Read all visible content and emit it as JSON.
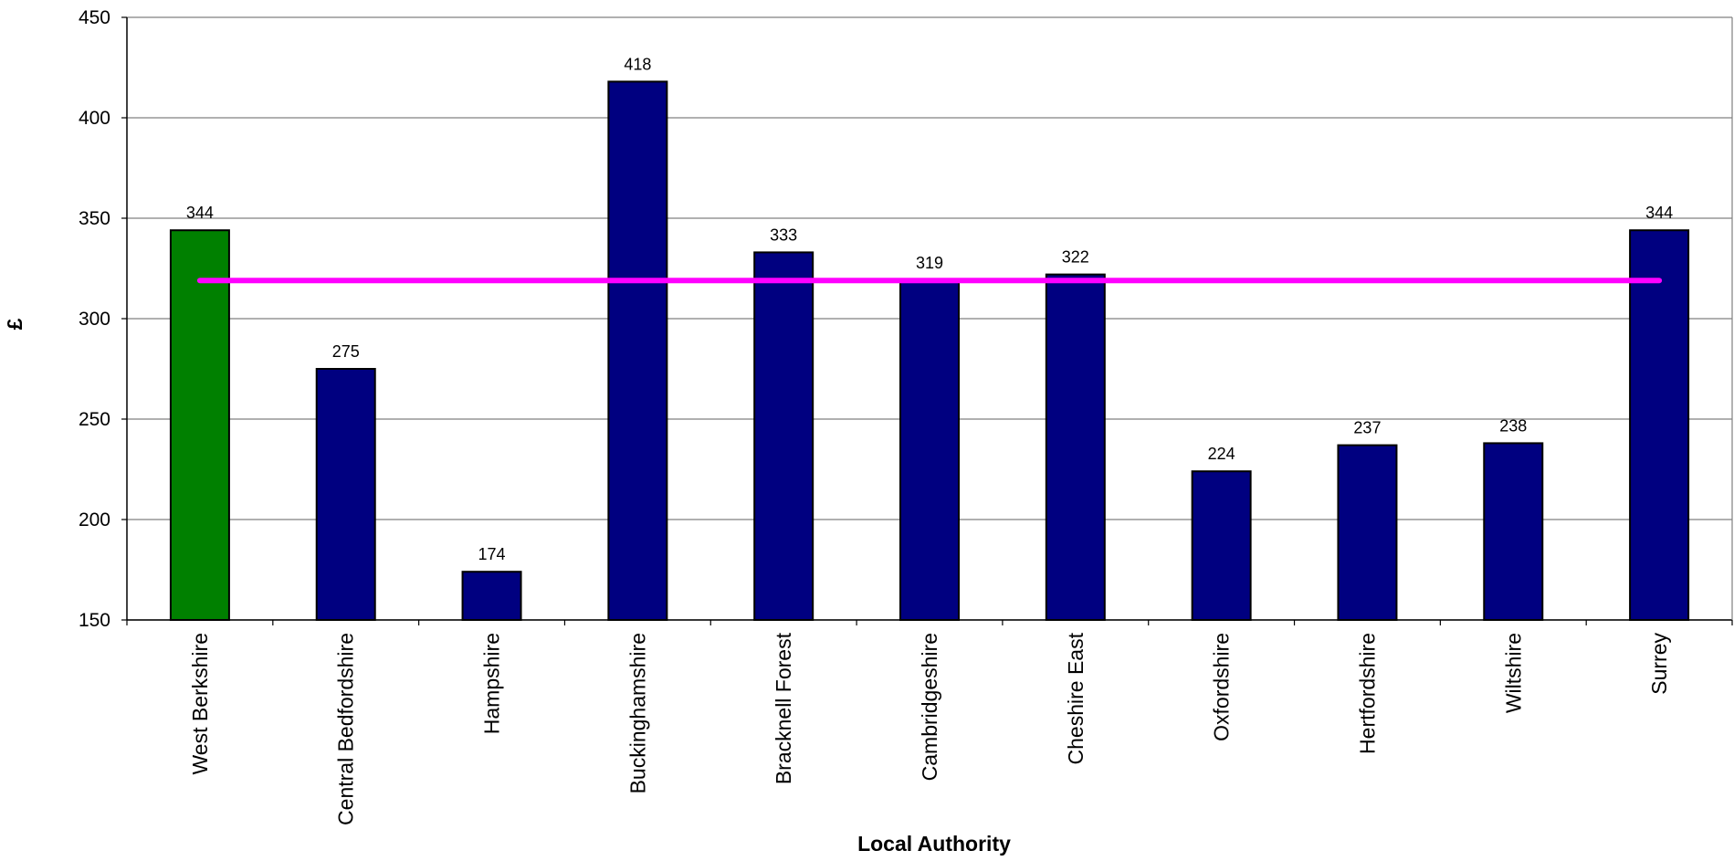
{
  "chart_data": {
    "type": "bar",
    "xlabel": "Local Authority",
    "ylabel": "£",
    "ylim": [
      150,
      450
    ],
    "yticks": [
      150,
      200,
      250,
      300,
      350,
      400,
      450
    ],
    "grid": true,
    "categories": [
      "West Berkshire",
      "Central Bedfordshire",
      "Hampshire",
      "Buckinghamshire",
      "Bracknell Forest",
      "Cambridgeshire",
      "Cheshire East",
      "Oxfordshire",
      "Hertfordshire",
      "Wiltshire",
      "Surrey"
    ],
    "values": [
      344,
      275,
      174,
      418,
      333,
      319,
      322,
      224,
      237,
      238,
      344
    ],
    "highlight_index": 0,
    "reference_line": {
      "value": 319
    },
    "colors": {
      "bar": "#000080",
      "highlight": "#008000",
      "reference_line": "#ff00ff",
      "grid": "#808080"
    }
  }
}
